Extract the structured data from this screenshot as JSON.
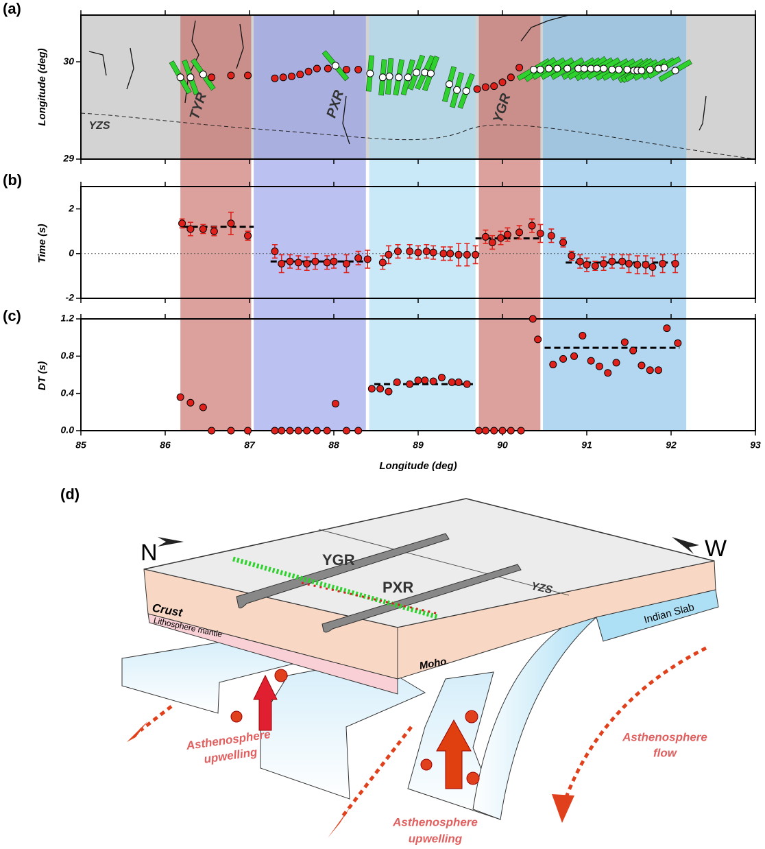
{
  "panel_labels": [
    "(a)",
    "(b)",
    "(c)",
    "(d)"
  ],
  "chart_data": [
    {
      "type": "scatter",
      "ylabel": "Longitude (deg)",
      "map_labels": [
        "TYR",
        "PXR",
        "YGR",
        "YZS"
      ],
      "xlim": [
        85,
        93
      ],
      "ylim": [
        29,
        30.48
      ],
      "yticks": [
        29,
        30
      ],
      "regions": [
        {
          "from": 86.18,
          "to": 87.02,
          "color": "#c4625a"
        },
        {
          "from": 87.05,
          "to": 88.38,
          "color": "#8d97e8"
        },
        {
          "from": 88.42,
          "to": 89.68,
          "color": "#a6daf4"
        },
        {
          "from": 89.72,
          "to": 90.45,
          "color": "#c4625a"
        },
        {
          "from": 90.48,
          "to": 92.18,
          "color": "#80bde8"
        }
      ],
      "series": [
        {
          "color": "#e0201b",
          "x": [
            86.55,
            86.78,
            86.98,
            87.3,
            87.4,
            87.5,
            87.6,
            87.7,
            87.8,
            87.93,
            88.15,
            88.29,
            89.7,
            89.8,
            89.9,
            90.0,
            90.1,
            90.2
          ],
          "values": [
            29.84,
            29.86,
            29.86,
            29.83,
            29.84,
            29.85,
            29.87,
            29.9,
            29.93,
            29.93,
            29.92,
            29.92,
            29.72,
            29.74,
            29.75,
            29.79,
            29.84,
            29.94
          ]
        },
        {
          "color": "#ffffff",
          "bar_color": "#2ed12e",
          "x": [
            86.18,
            86.3,
            86.45,
            88.02,
            88.43,
            88.58,
            88.66,
            88.77,
            88.88,
            88.98,
            89.08,
            89.15,
            89.37,
            89.46,
            89.57,
            90.37,
            90.45,
            90.55,
            90.65,
            90.77,
            90.9,
            90.97,
            91.05,
            91.12,
            91.2,
            91.3,
            91.38,
            91.48,
            91.56,
            91.6,
            91.65,
            91.75,
            91.85,
            91.92,
            92.05
          ],
          "values": [
            29.84,
            29.84,
            29.87,
            29.96,
            29.88,
            29.84,
            29.85,
            29.84,
            29.84,
            29.89,
            29.89,
            29.88,
            29.77,
            29.71,
            29.7,
            29.92,
            29.92,
            29.93,
            29.93,
            29.93,
            29.93,
            29.93,
            29.93,
            29.93,
            29.93,
            29.92,
            29.92,
            29.92,
            29.91,
            29.91,
            29.91,
            29.92,
            29.93,
            29.94,
            29.91
          ],
          "bar_azimuth": [
            -30,
            -20,
            -35,
            -40,
            5,
            5,
            5,
            10,
            15,
            20,
            25,
            20,
            15,
            15,
            20,
            60,
            55,
            60,
            60,
            60,
            60,
            60,
            55,
            60,
            60,
            60,
            60,
            60,
            55,
            55,
            60,
            60,
            60,
            60,
            60
          ]
        }
      ]
    },
    {
      "type": "scatter",
      "ylabel": "Time (s)",
      "xlim": [
        85,
        93
      ],
      "ylim": [
        -2,
        3
      ],
      "yticks": [
        -2,
        0,
        2
      ],
      "hline": 0,
      "series": [
        {
          "color": "#e0201b",
          "error_color": "#e0201b",
          "x": [
            86.2,
            86.3,
            86.45,
            86.58,
            86.78,
            86.98,
            87.3,
            87.38,
            87.48,
            87.58,
            87.68,
            87.78,
            87.92,
            88.0,
            88.15,
            88.29,
            88.4,
            88.58,
            88.65,
            88.76,
            88.9,
            89.0,
            89.1,
            89.18,
            89.3,
            89.38,
            89.48,
            89.58,
            89.68,
            89.8,
            89.88,
            89.98,
            90.06,
            90.2,
            90.35,
            90.45,
            90.58,
            90.72,
            90.82,
            90.92,
            91.0,
            91.1,
            91.2,
            91.3,
            91.42,
            91.5,
            91.6,
            91.7,
            91.78,
            91.9,
            92.05
          ],
          "values": [
            1.35,
            1.1,
            1.1,
            1.0,
            1.35,
            0.8,
            0.1,
            -0.45,
            -0.35,
            -0.4,
            -0.45,
            -0.35,
            -0.4,
            -0.35,
            -0.45,
            -0.2,
            -0.25,
            -0.4,
            -0.05,
            0.1,
            0.1,
            0.05,
            0.1,
            0.05,
            0.0,
            0.0,
            -0.05,
            -0.05,
            -0.05,
            0.75,
            0.5,
            0.7,
            0.85,
            0.95,
            1.25,
            0.9,
            0.8,
            0.5,
            -0.1,
            -0.35,
            -0.5,
            -0.55,
            -0.45,
            -0.35,
            -0.35,
            -0.45,
            -0.5,
            -0.5,
            -0.6,
            -0.45,
            -0.45
          ],
          "errors": [
            0.2,
            0.3,
            0.2,
            0.2,
            0.5,
            0.2,
            0.3,
            0.4,
            0.3,
            0.3,
            0.3,
            0.35,
            0.3,
            0.3,
            0.4,
            0.3,
            0.4,
            0.3,
            0.4,
            0.3,
            0.3,
            0.3,
            0.3,
            0.3,
            0.3,
            0.3,
            0.5,
            0.5,
            0.4,
            0.3,
            0.3,
            0.3,
            0.3,
            0.3,
            0.3,
            0.4,
            0.3,
            0.2,
            0.2,
            0.3,
            0.3,
            0.2,
            0.3,
            0.3,
            0.3,
            0.4,
            0.4,
            0.4,
            0.4,
            0.4,
            0.4
          ]
        }
      ],
      "mean_lines": [
        {
          "from": 86.2,
          "to": 87.05,
          "value": 1.2
        },
        {
          "from": 87.25,
          "to": 88.35,
          "value": -0.35
        },
        {
          "from": 89.68,
          "to": 90.45,
          "value": 0.68
        },
        {
          "from": 90.75,
          "to": 92.1,
          "value": -0.4
        }
      ]
    },
    {
      "type": "scatter",
      "ylabel": "DT (s)",
      "xlabel": "Longitude (deg)",
      "xlim": [
        85,
        93
      ],
      "ylim": [
        0,
        1.2
      ],
      "xticks": [
        85,
        86,
        87,
        88,
        89,
        90,
        91,
        92,
        93
      ],
      "yticks": [
        {
          "value": 0,
          "label": "0.0"
        },
        {
          "value": 0.4,
          "label": "0.4"
        },
        {
          "value": 0.8,
          "label": "0.8"
        },
        {
          "value": 1.2,
          "label": "1.2"
        }
      ],
      "series": [
        {
          "color": "#e0201b",
          "x": [
            86.18,
            86.3,
            86.45,
            86.55,
            86.78,
            86.98,
            87.3,
            87.38,
            87.48,
            87.58,
            87.68,
            87.8,
            87.92,
            88.02,
            88.15,
            88.29,
            88.45,
            88.55,
            88.65,
            88.75,
            88.9,
            89.0,
            89.08,
            89.18,
            89.28,
            89.4,
            89.48,
            89.58,
            89.72,
            89.8,
            89.9,
            90.0,
            90.1,
            90.22,
            90.36,
            90.42,
            90.6,
            90.72,
            90.85,
            90.95,
            91.05,
            91.15,
            91.25,
            91.35,
            91.45,
            91.55,
            91.65,
            91.75,
            91.85,
            91.95,
            92.08
          ],
          "values": [
            0.36,
            0.3,
            0.25,
            0,
            0,
            0,
            0,
            0,
            0,
            0,
            0,
            0,
            0,
            0.29,
            0,
            0,
            0.45,
            0.45,
            0.42,
            0.52,
            0.5,
            0.54,
            0.54,
            0.53,
            0.57,
            0.52,
            0.52,
            0.5,
            0,
            0,
            0,
            0,
            0,
            0,
            1.2,
            0.98,
            0.71,
            0.77,
            0.8,
            1.02,
            0.75,
            0.69,
            0.62,
            0.73,
            0.95,
            0.86,
            0.7,
            0.65,
            0.65,
            1.1,
            0.94
          ]
        }
      ],
      "mean_lines": [
        {
          "from": 88.48,
          "to": 89.65,
          "value": 0.5
        },
        {
          "from": 90.5,
          "to": 92.1,
          "value": 0.89
        }
      ]
    }
  ],
  "diagram": {
    "north": "N",
    "west": "W",
    "ridges": [
      "YGR",
      "PXR"
    ],
    "suture": "YZS",
    "crust": "Crust",
    "lithosphere": "Lithosphere mantle",
    "moho": "Moho",
    "slab": "Indian Slab",
    "upwelling_left": [
      "Asthenosphere",
      "upwelling"
    ],
    "upwelling_right": [
      "Asthenosphere",
      "upwelling"
    ],
    "flow": [
      "Asthenosphere",
      "flow"
    ]
  }
}
